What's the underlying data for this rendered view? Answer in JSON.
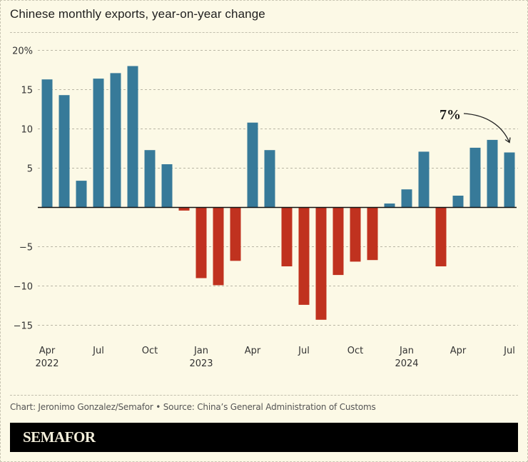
{
  "title": "Chinese monthly exports, year-on-year change",
  "credit": "Chart: Jeronimo Gonzalez/Semafor • Source: China’s General Administration of Customs",
  "brand": "SEMAFOR",
  "colors": {
    "background": "#fcf9e6",
    "positive": "#377a99",
    "negative": "#c0321f",
    "brand_bar": "#000000"
  },
  "chart_data": {
    "type": "bar",
    "title": "Chinese monthly exports, year-on-year change",
    "xlabel": "",
    "ylabel": "",
    "units": "%",
    "ylim": [
      -15,
      20
    ],
    "yticks": [
      20,
      15,
      10,
      5,
      0,
      -5,
      -10,
      -15
    ],
    "ytick_labels": [
      "20%",
      "15",
      "10",
      "5",
      "",
      "−5",
      "−10",
      "−15"
    ],
    "grid": true,
    "categories": [
      "Apr 2022",
      "May 2022",
      "Jun 2022",
      "Jul 2022",
      "Aug 2022",
      "Sep 2022",
      "Oct 2022",
      "Nov 2022",
      "Dec 2022",
      "Jan 2023",
      "Feb 2023",
      "Mar 2023",
      "Apr 2023",
      "May 2023",
      "Jun 2023",
      "Jul 2023",
      "Aug 2023",
      "Sep 2023",
      "Oct 2023",
      "Nov 2023",
      "Dec 2023",
      "Jan 2024",
      "Feb 2024",
      "Mar 2024",
      "Apr 2024",
      "May 2024",
      "Jun 2024",
      "Jul 2024"
    ],
    "values": [
      16.3,
      14.3,
      3.4,
      16.4,
      17.1,
      18.0,
      7.3,
      5.5,
      -0.4,
      -9.0,
      -9.9,
      -6.8,
      10.8,
      7.3,
      -7.5,
      -12.4,
      -14.3,
      -8.6,
      -6.9,
      -6.7,
      0.5,
      2.3,
      7.1,
      -7.5,
      1.5,
      7.6,
      8.6,
      7.0
    ],
    "xticks": [
      {
        "index": 0,
        "label": "Apr",
        "year": "2022"
      },
      {
        "index": 3,
        "label": "Jul",
        "year": ""
      },
      {
        "index": 6,
        "label": "Oct",
        "year": ""
      },
      {
        "index": 9,
        "label": "Jan",
        "year": "2023"
      },
      {
        "index": 12,
        "label": "Apr",
        "year": ""
      },
      {
        "index": 15,
        "label": "Jul",
        "year": ""
      },
      {
        "index": 18,
        "label": "Oct",
        "year": ""
      },
      {
        "index": 21,
        "label": "Jan",
        "year": "2024"
      },
      {
        "index": 24,
        "label": "Apr",
        "year": ""
      },
      {
        "index": 27,
        "label": "Jul",
        "year": ""
      }
    ],
    "annotations": [
      {
        "text": "7%",
        "target_index": 27,
        "arrow": true
      }
    ],
    "legend": "none"
  }
}
